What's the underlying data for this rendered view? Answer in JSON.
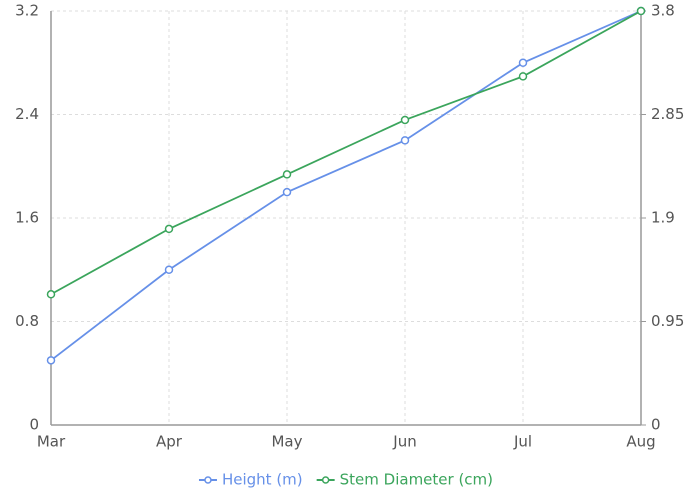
{
  "chart_data": {
    "type": "line",
    "categories": [
      "Mar",
      "Apr",
      "May",
      "Jun",
      "Jul",
      "Aug"
    ],
    "series": [
      {
        "name": "Height (m)",
        "color": "#6690e8",
        "values": [
          0.5,
          1.2,
          1.8,
          2.2,
          2.8,
          3.2
        ]
      },
      {
        "name": "Stem Diameter (cm)",
        "color": "#3ba55c",
        "axis": "y2",
        "values": [
          1.2,
          1.8,
          2.3,
          2.8,
          3.2,
          3.8
        ]
      }
    ],
    "ylim": [
      0,
      3.2
    ],
    "yticks": [
      0,
      0.8,
      1.6,
      2.4,
      3.2
    ],
    "y2lim": [
      0,
      3.8
    ],
    "y2ticks": [
      0,
      0.95,
      1.9,
      2.85,
      3.8
    ],
    "grid": true,
    "legend": "bottom"
  }
}
